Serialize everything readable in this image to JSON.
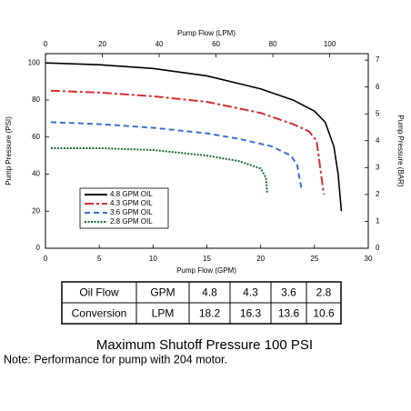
{
  "chart_data": {
    "type": "line",
    "x_label": "Pump Flow (GPM)",
    "x2_label": "Pump Flow (LPM)",
    "y_label": "Pump Pressure (PSI)",
    "y2_label": "Pump Pressure (BAR)",
    "xlim": [
      0,
      30
    ],
    "xticks": [
      0,
      5,
      10,
      15,
      20,
      25,
      30
    ],
    "x2lim": [
      0,
      113.56
    ],
    "x2ticks": [
      0,
      20,
      40,
      60,
      80,
      100
    ],
    "ylim": [
      0,
      105
    ],
    "yticks": [
      0,
      20,
      40,
      60,
      80,
      100
    ],
    "y2lim": [
      0,
      7.24
    ],
    "y2ticks": [
      0,
      1,
      2,
      3,
      4,
      5,
      6,
      7
    ],
    "legend": "lower left",
    "series": [
      {
        "name": "4.8 GPM OIL",
        "color": "#000000",
        "style": "solid",
        "x": [
          0,
          5,
          10,
          15,
          20,
          23,
          25,
          26,
          26.8,
          27.2,
          27.5
        ],
        "values": [
          100,
          99,
          97,
          93,
          86,
          80,
          74,
          68,
          55,
          40,
          20
        ]
      },
      {
        "name": "4.3 GPM OIL",
        "color": "#d03030",
        "style": "dashdot",
        "x": [
          0.5,
          5,
          10,
          15,
          20,
          23,
          24.5,
          25.2,
          25.5,
          25.8,
          25.9
        ],
        "values": [
          85,
          84,
          82,
          79,
          73,
          67,
          63,
          58,
          45,
          32,
          29
        ]
      },
      {
        "name": "3.6 GPM OIL",
        "color": "#3a6fd0",
        "style": "dashed",
        "x": [
          0.5,
          5,
          10,
          15,
          18,
          21,
          22.8,
          23.4,
          23.6,
          23.8
        ],
        "values": [
          68,
          67,
          65,
          62,
          59,
          55,
          50,
          45,
          38,
          32
        ]
      },
      {
        "name": "2.8 GPM OIL",
        "color": "#1a6a2a",
        "style": "dotted",
        "x": [
          0.5,
          5,
          10,
          15,
          18,
          20,
          20.5,
          20.6
        ],
        "values": [
          54,
          54,
          53,
          50,
          47,
          43,
          38,
          30
        ]
      }
    ]
  },
  "table": {
    "rows": [
      [
        "Oil Flow",
        "GPM",
        "4.8",
        "4.3",
        "3.6",
        "2.8"
      ],
      [
        "Conversion",
        "LPM",
        "18.2",
        "16.3",
        "13.6",
        "10.6"
      ]
    ]
  },
  "caption": "Maximum Shutoff Pressure  100 PSI",
  "note": "Note: Performance for pump with 204 motor."
}
